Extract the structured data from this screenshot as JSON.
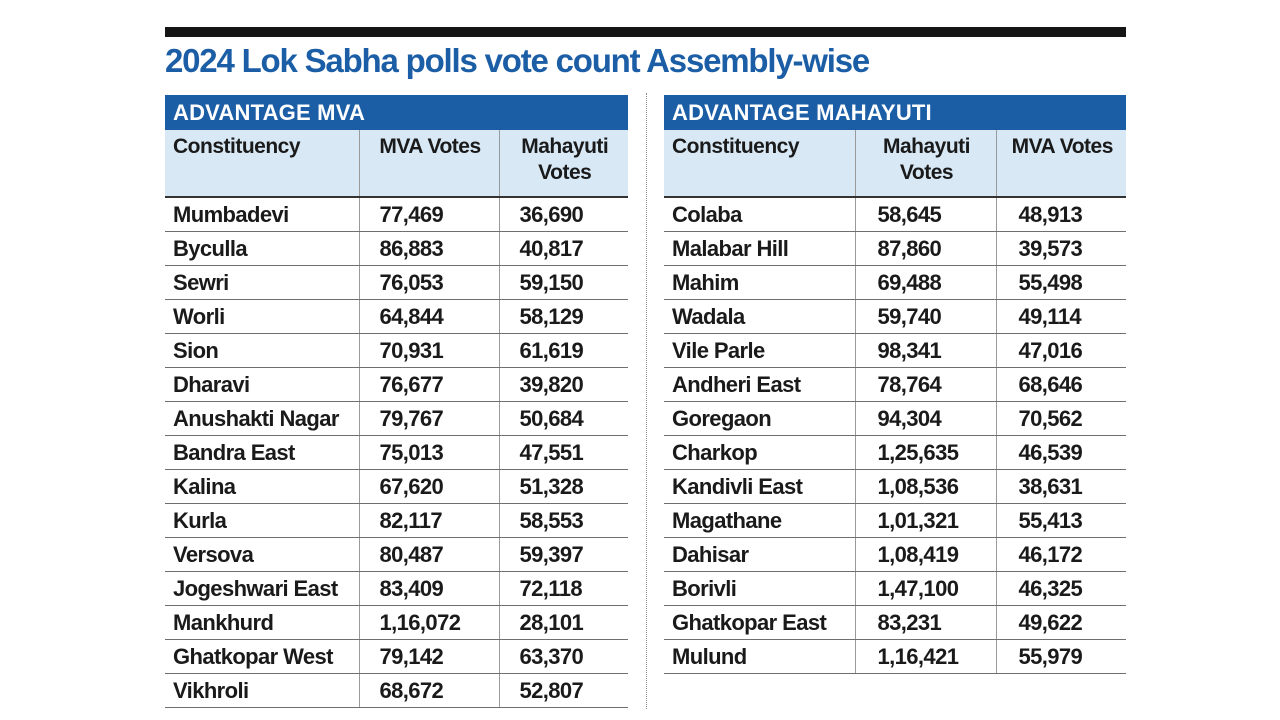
{
  "title": "2024 Lok Sabha polls vote count Assembly-wise",
  "chart_data": [
    {
      "type": "table",
      "title": "ADVANTAGE MVA",
      "columns": [
        "Constituency",
        "MVA Votes",
        "Mahayuti Votes"
      ],
      "rows": [
        [
          "Mumbadevi",
          "77,469",
          "36,690"
        ],
        [
          "Byculla",
          "86,883",
          "40,817"
        ],
        [
          "Sewri",
          "76,053",
          "59,150"
        ],
        [
          "Worli",
          "64,844",
          "58,129"
        ],
        [
          "Sion",
          "70,931",
          "61,619"
        ],
        [
          "Dharavi",
          "76,677",
          "39,820"
        ],
        [
          "Anushakti Nagar",
          "79,767",
          "50,684"
        ],
        [
          "Bandra East",
          "75,013",
          "47,551"
        ],
        [
          "Kalina",
          "67,620",
          "51,328"
        ],
        [
          "Kurla",
          "82,117",
          "58,553"
        ],
        [
          "Versova",
          "80,487",
          "59,397"
        ],
        [
          "Jogeshwari East",
          "83,409",
          "72,118"
        ],
        [
          "Mankhurd",
          "1,16,072",
          "28,101"
        ],
        [
          "Ghatkopar West",
          "79,142",
          "63,370"
        ],
        [
          "Vikhroli",
          "68,672",
          "52,807"
        ]
      ]
    },
    {
      "type": "table",
      "title": "ADVANTAGE MAHAYUTI",
      "columns": [
        "Constituency",
        "Mahayuti Votes",
        "MVA Votes"
      ],
      "rows": [
        [
          "Colaba",
          "58,645",
          "48,913"
        ],
        [
          "Malabar Hill",
          "87,860",
          "39,573"
        ],
        [
          "Mahim",
          "69,488",
          "55,498"
        ],
        [
          "Wadala",
          "59,740",
          "49,114"
        ],
        [
          "Vile Parle",
          "98,341",
          "47,016"
        ],
        [
          "Andheri East",
          "78,764",
          "68,646"
        ],
        [
          "Goregaon",
          "94,304",
          "70,562"
        ],
        [
          "Charkop",
          "1,25,635",
          "46,539"
        ],
        [
          "Kandivli East",
          "1,08,536",
          "38,631"
        ],
        [
          "Magathane",
          "1,01,321",
          "55,413"
        ],
        [
          "Dahisar",
          "1,08,419",
          "46,172"
        ],
        [
          "Borivli",
          "1,47,100",
          "46,325"
        ],
        [
          "Ghatkopar East",
          "83,231",
          "49,622"
        ],
        [
          "Mulund",
          "1,16,421",
          "55,979"
        ]
      ]
    }
  ],
  "colors": {
    "accent": "#1c5ea6",
    "header_bg": "#d8e8f5",
    "rule": "#151515"
  }
}
